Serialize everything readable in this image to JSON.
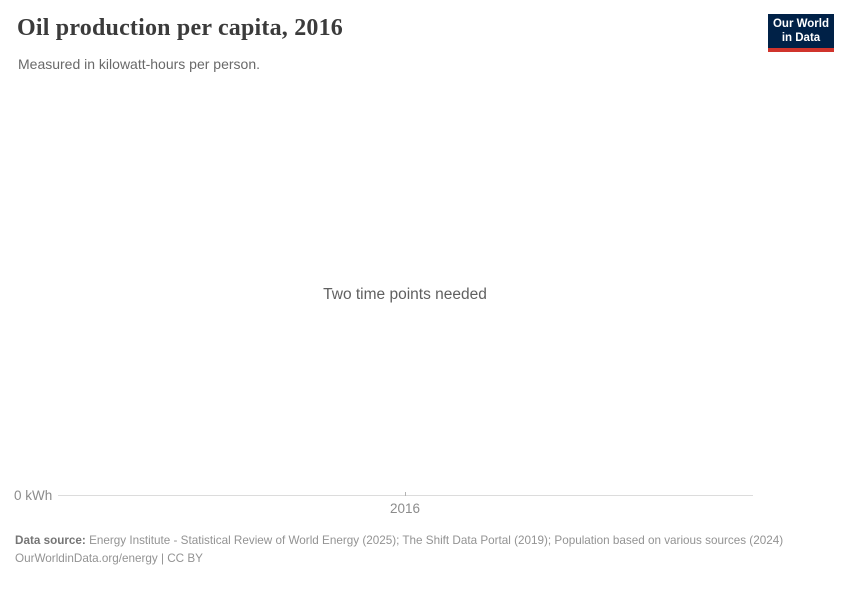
{
  "header": {
    "title": "Oil production per capita, 2016",
    "subtitle": "Measured in kilowatt-hours per person.",
    "logo": {
      "line1": "Our World",
      "line2": "in Data",
      "bg_color": "#002147",
      "stripe_color": "#d0342c",
      "text_color": "#ffffff"
    }
  },
  "chart_data": {
    "type": "line",
    "title": "Oil production per capita, 2016",
    "subtitle": "Measured in kilowatt-hours per person.",
    "unit": "kilowatt-hours per person",
    "series": [],
    "empty_state_message": "Two time points needed",
    "x_tick_labels": [
      "2016"
    ],
    "y_tick_labels": [
      "0 kWh"
    ],
    "xlabel": "",
    "ylabel": "",
    "grid": false,
    "legend": "none",
    "axis_line_color": "#dcdcdc",
    "tick_label_color": "#8c8c8c"
  },
  "axis": {
    "y_zero_label": "0 kWh",
    "x_tick_label": "2016"
  },
  "message": {
    "text": "Two time points needed"
  },
  "footer": {
    "source_label": "Data source:",
    "source_text": "Energy Institute - Statistical Review of World Energy (2025); The Shift Data Portal (2019); Population based on various sources (2024)",
    "license_text": "OurWorldinData.org/energy | CC BY"
  }
}
